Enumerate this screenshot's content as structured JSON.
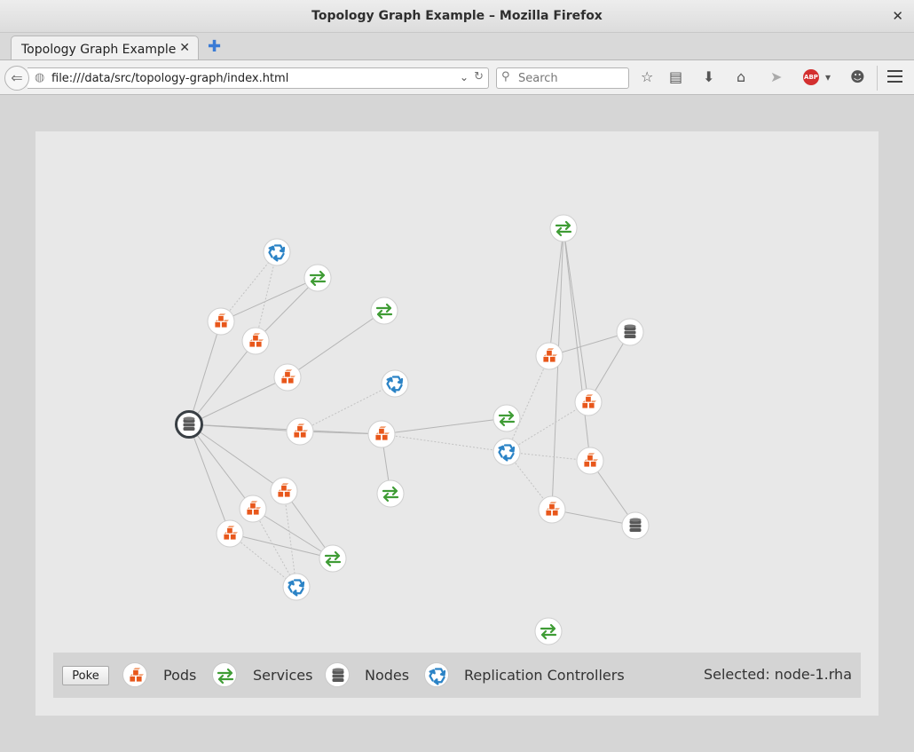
{
  "window": {
    "title": "Topology Graph Example – Mozilla Firefox"
  },
  "tabs": [
    {
      "label": "Topology Graph Example",
      "active": true
    }
  ],
  "navbar": {
    "url": "file:///data/src/topology-graph/index.html",
    "search_placeholder": "Search"
  },
  "icons": {
    "pod": "cubes-icon",
    "service": "arrows-exchange-icon",
    "node": "database-icon",
    "replication_controller": "recycle-icon"
  },
  "colors": {
    "pod": "#e8571b",
    "service": "#3f9c35",
    "node": "#585858",
    "replication_controller": "#2b83c6",
    "edge": "#b5b5b5",
    "selected_ring": "#393f44"
  },
  "legend": {
    "poke_label": "Poke",
    "items": [
      {
        "kind": "pod",
        "label": "Pods"
      },
      {
        "kind": "service",
        "label": "Services"
      },
      {
        "kind": "node",
        "label": "Nodes"
      },
      {
        "kind": "replication_controller",
        "label": "Replication Controllers"
      }
    ],
    "selected_text": "Selected: node-1.rha"
  },
  "graph": {
    "nodes": [
      {
        "id": "n1",
        "kind": "node",
        "selected": true
      },
      {
        "id": "rc1",
        "kind": "replication_controller"
      },
      {
        "id": "s1",
        "kind": "service"
      },
      {
        "id": "p1",
        "kind": "pod"
      },
      {
        "id": "p2",
        "kind": "pod"
      },
      {
        "id": "s2",
        "kind": "service"
      },
      {
        "id": "p3",
        "kind": "pod"
      },
      {
        "id": "rc2",
        "kind": "replication_controller"
      },
      {
        "id": "p4",
        "kind": "pod"
      },
      {
        "id": "p5",
        "kind": "pod"
      },
      {
        "id": "s3",
        "kind": "service"
      },
      {
        "id": "p6",
        "kind": "pod"
      },
      {
        "id": "p7",
        "kind": "pod"
      },
      {
        "id": "p8",
        "kind": "pod"
      },
      {
        "id": "s4",
        "kind": "service"
      },
      {
        "id": "rc3",
        "kind": "replication_controller"
      },
      {
        "id": "s5",
        "kind": "service"
      },
      {
        "id": "n2",
        "kind": "node"
      },
      {
        "id": "p9",
        "kind": "pod"
      },
      {
        "id": "p10",
        "kind": "pod"
      },
      {
        "id": "s6",
        "kind": "service"
      },
      {
        "id": "rc4",
        "kind": "replication_controller"
      },
      {
        "id": "p11",
        "kind": "pod"
      },
      {
        "id": "p12",
        "kind": "pod"
      },
      {
        "id": "n3",
        "kind": "node"
      },
      {
        "id": "s7",
        "kind": "service"
      }
    ],
    "edges": [
      {
        "from": "n1",
        "to": "p1",
        "style": "solid"
      },
      {
        "from": "n1",
        "to": "p2",
        "style": "solid"
      },
      {
        "from": "n1",
        "to": "p3",
        "style": "solid"
      },
      {
        "from": "n1",
        "to": "p4",
        "style": "solid"
      },
      {
        "from": "n1",
        "to": "p5",
        "style": "solid"
      },
      {
        "from": "n1",
        "to": "p6",
        "style": "solid"
      },
      {
        "from": "n1",
        "to": "p7",
        "style": "solid"
      },
      {
        "from": "n1",
        "to": "p8",
        "style": "solid"
      },
      {
        "from": "p1",
        "to": "s1",
        "style": "solid"
      },
      {
        "from": "p2",
        "to": "s1",
        "style": "solid"
      },
      {
        "from": "p1",
        "to": "rc1",
        "style": "dotted"
      },
      {
        "from": "p2",
        "to": "rc1",
        "style": "dotted"
      },
      {
        "from": "p3",
        "to": "s2",
        "style": "solid"
      },
      {
        "from": "p4",
        "to": "p5",
        "style": "solid"
      },
      {
        "from": "p4",
        "to": "rc2",
        "style": "dotted"
      },
      {
        "from": "p5",
        "to": "s3",
        "style": "solid"
      },
      {
        "from": "p5",
        "to": "s5",
        "style": "solid"
      },
      {
        "from": "p5",
        "to": "rc4",
        "style": "dotted"
      },
      {
        "from": "p6",
        "to": "s4",
        "style": "solid"
      },
      {
        "from": "p7",
        "to": "s4",
        "style": "solid"
      },
      {
        "from": "p8",
        "to": "s4",
        "style": "solid"
      },
      {
        "from": "p6",
        "to": "rc3",
        "style": "dotted"
      },
      {
        "from": "p7",
        "to": "rc3",
        "style": "dotted"
      },
      {
        "from": "p8",
        "to": "rc3",
        "style": "dotted"
      },
      {
        "from": "n2",
        "to": "p9",
        "style": "solid"
      },
      {
        "from": "n2",
        "to": "p10",
        "style": "solid"
      },
      {
        "from": "n3",
        "to": "p11",
        "style": "solid"
      },
      {
        "from": "n3",
        "to": "p12",
        "style": "solid"
      },
      {
        "from": "s6",
        "to": "p9",
        "style": "solid"
      },
      {
        "from": "s6",
        "to": "p10",
        "style": "solid"
      },
      {
        "from": "s6",
        "to": "p11",
        "style": "solid"
      },
      {
        "from": "s6",
        "to": "p12",
        "style": "solid"
      },
      {
        "from": "rc4",
        "to": "p9",
        "style": "dotted"
      },
      {
        "from": "rc4",
        "to": "p10",
        "style": "dotted"
      },
      {
        "from": "rc4",
        "to": "p11",
        "style": "dotted"
      },
      {
        "from": "rc4",
        "to": "p12",
        "style": "dotted"
      }
    ]
  }
}
